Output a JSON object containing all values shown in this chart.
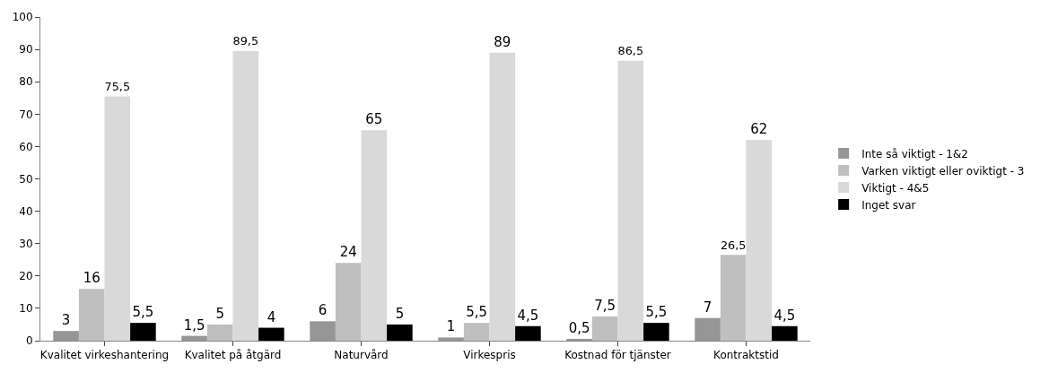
{
  "chart_data": {
    "type": "bar",
    "categories": [
      "Kvalitet virkeshantering",
      "Kvalitet på åtgärd",
      "Naturvård",
      "Virkespris",
      "Kostnad för tjänster",
      "Kontraktstid"
    ],
    "series": [
      {
        "name": "Inte så viktigt - 1&2",
        "color": "#969696",
        "values": [
          3,
          1.5,
          6,
          1,
          0.5,
          7
        ],
        "value_labels": [
          "3",
          "1,5",
          "6",
          "1",
          "0,5",
          "7"
        ]
      },
      {
        "name": "Varken viktigt eller oviktigt - 3",
        "color": "#bfbfbf",
        "values": [
          16,
          5,
          24,
          5.5,
          7.5,
          26.5
        ],
        "value_labels": [
          "16",
          "5",
          "24",
          "5,5",
          "7,5",
          "26,5"
        ]
      },
      {
        "name": "Viktigt - 4&5",
        "color": "#d9d9d9",
        "values": [
          75.5,
          89.5,
          65,
          89,
          86.5,
          62
        ],
        "value_labels": [
          "75,5",
          "89,5",
          "65",
          "89",
          "86,5",
          "62"
        ]
      },
      {
        "name": "Inget svar",
        "color": "#000000",
        "values": [
          5.5,
          4,
          5,
          4.5,
          5.5,
          4.5
        ],
        "value_labels": [
          "5,5",
          "4",
          "5",
          "4,5",
          "5,5",
          "4,5"
        ]
      }
    ],
    "ylim": [
      0,
      100
    ],
    "yticks": [
      0,
      10,
      20,
      30,
      40,
      50,
      60,
      70,
      80,
      90,
      100
    ],
    "grid": false,
    "legend": "right"
  }
}
